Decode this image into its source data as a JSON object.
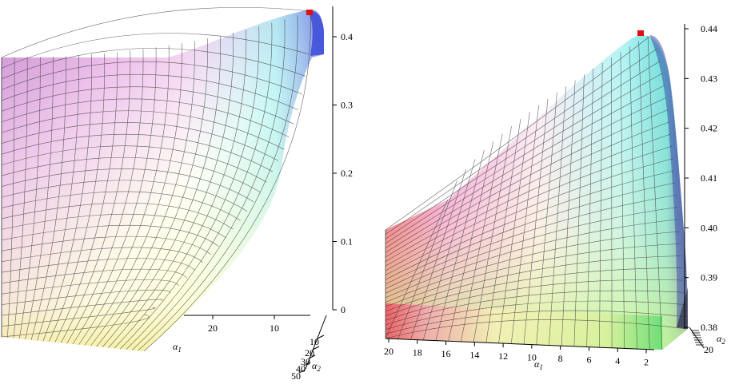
{
  "chart_data": [
    {
      "type": "surface3d",
      "title": "",
      "xlabel": "α1",
      "ylabel": "α2",
      "zlabel": "",
      "z_ticks": [
        "0",
        "0.1",
        "0.2",
        "0.3",
        "0.4"
      ],
      "x_ticks": [
        "20",
        "10"
      ],
      "y_ticks": [
        "10",
        "20",
        "30",
        "40",
        "50"
      ],
      "zlim": [
        0,
        0.44
      ],
      "max_marker": {
        "z": 0.44,
        "color": "#e01010"
      },
      "grid": true,
      "legend": "none"
    },
    {
      "type": "surface3d",
      "title": "",
      "xlabel": "α1",
      "ylabel": "α2",
      "zlabel": "",
      "z_ticks": [
        "0.38",
        "0.39",
        "0.40",
        "0.41",
        "0.42",
        "0.43",
        "0.44"
      ],
      "x_ticks": [
        "20",
        "18",
        "16",
        "14",
        "12",
        "10",
        "8",
        "6",
        "4",
        "2"
      ],
      "y_ticks": [
        "20"
      ],
      "zlim": [
        0.38,
        0.44
      ],
      "max_marker": {
        "z": 0.44,
        "color": "#e01010"
      },
      "grid": true,
      "legend": "none"
    }
  ]
}
